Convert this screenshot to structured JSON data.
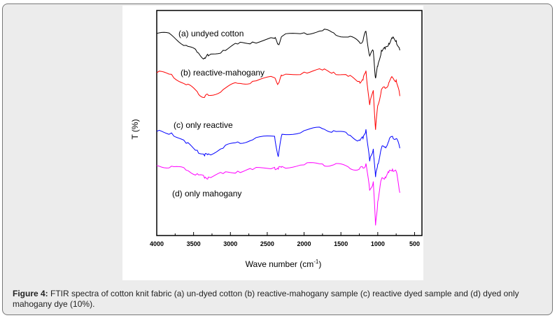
{
  "chart_data": {
    "type": "line",
    "xlabel": "Wave number (cm",
    "xlabel_sup": "-1",
    "xlabel_end": ")",
    "ylabel": "T (%)",
    "xlim": [
      4000,
      400
    ],
    "ylim": [
      0,
      100
    ],
    "xticks": [
      4000,
      3500,
      3000,
      2500,
      2000,
      1500,
      1000,
      500
    ],
    "xtick_labels": [
      "4000",
      "3500",
      "3000",
      "2500",
      "2000",
      "1500",
      "1000",
      "500"
    ],
    "x": [
      4000,
      3800,
      3600,
      3450,
      3350,
      3300,
      3100,
      2900,
      2700,
      2400,
      2350,
      2300,
      2000,
      1750,
      1600,
      1400,
      1250,
      1200,
      1160,
      1110,
      1060,
      1030,
      1000,
      950,
      900,
      850,
      800,
      750,
      700
    ],
    "series": [
      {
        "name": "(a) undyed cotton",
        "color": "#000000",
        "values": [
          89.8,
          89.1,
          84.5,
          81.4,
          78.9,
          79.8,
          82.3,
          85.1,
          86,
          87.6,
          85.1,
          88.5,
          90.1,
          91,
          90.1,
          88.2,
          86,
          86.6,
          90.7,
          79.8,
          82,
          69.9,
          75.2,
          82.3,
          82.9,
          85.4,
          87.6,
          86.6,
          82.3
        ]
      },
      {
        "name": "(b) reactive-mahogany",
        "color": "#ff0000",
        "values": [
          72.3,
          71.6,
          67,
          63.9,
          61.4,
          62.3,
          64.8,
          67.6,
          68.5,
          70.1,
          67.6,
          71,
          72.6,
          73.5,
          72.6,
          70.7,
          68.5,
          69.1,
          73.2,
          58,
          64.5,
          47,
          57.7,
          64.8,
          65.4,
          67.9,
          70.1,
          69.1,
          62
        ]
      },
      {
        "name": "(c) only reactive",
        "color": "#0000ff",
        "values": [
          46.3,
          45.6,
          41,
          37.9,
          35.4,
          36.3,
          38.8,
          41.6,
          42.5,
          44.1,
          35,
          45,
          46.6,
          47.5,
          46.6,
          44.7,
          42.5,
          43.1,
          47.2,
          33,
          38.5,
          26,
          31.7,
          38.8,
          39.4,
          41.9,
          44.1,
          43.1,
          38.8
        ]
      },
      {
        "name": "(d) only mahogany",
        "color": "#ff00ff",
        "values": [
          31.1,
          30.8,
          29,
          27.5,
          25.5,
          26,
          27.5,
          28.6,
          29.3,
          30.3,
          29.5,
          30.7,
          31.4,
          31.8,
          31.4,
          30.5,
          29.5,
          30,
          32,
          20,
          24,
          4.5,
          15,
          25,
          26,
          28,
          29.5,
          28.5,
          19
        ]
      }
    ]
  },
  "caption": {
    "label": "Figure 4:",
    "text": " FTIR spectra of cotton knit fabric (a) un-dyed cotton (b) reactive-mahogany sample (c) reactive dyed sample and (d) dyed only mahogany dye (10%)."
  }
}
